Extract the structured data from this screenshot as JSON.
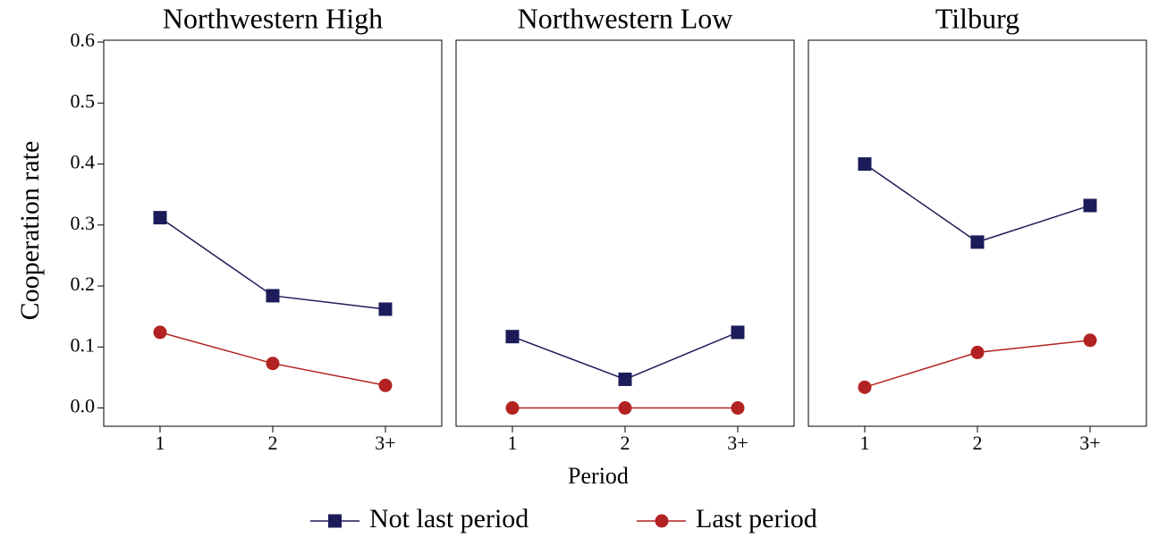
{
  "figure": {
    "ylabel": "Cooperation rate",
    "xlabel": "Period"
  },
  "chart_data": [
    {
      "type": "line",
      "title": "Northwestern High",
      "categories": [
        "1",
        "2",
        "3+"
      ],
      "series": [
        {
          "name": "Not last period",
          "color": "#1c1c5a",
          "marker": "square",
          "values": [
            0.312,
            0.184,
            0.162
          ]
        },
        {
          "name": "Last period",
          "color": "#b22222",
          "marker": "circle",
          "values": [
            0.124,
            0.073,
            0.037
          ]
        }
      ],
      "ylim": [
        -0.03,
        0.603
      ],
      "yticks": [
        {
          "value": 0,
          "label": "0.0"
        },
        0.1,
        0.2,
        0.3,
        0.4,
        0.5,
        0.6
      ]
    },
    {
      "type": "line",
      "title": "Northwestern Low",
      "categories": [
        "1",
        "2",
        "3+"
      ],
      "series": [
        {
          "name": "Not last period",
          "color": "#1c1c5a",
          "marker": "square",
          "values": [
            0.117,
            0.047,
            0.124
          ]
        },
        {
          "name": "Last period",
          "color": "#b22222",
          "marker": "circle",
          "values": [
            0,
            0,
            0
          ]
        }
      ],
      "ylim": [
        -0.03,
        0.603
      ]
    },
    {
      "type": "line",
      "title": "Tilburg",
      "categories": [
        "1",
        "2",
        "3+"
      ],
      "series": [
        {
          "name": "Not last period",
          "color": "#1c1c5a",
          "marker": "square",
          "values": [
            0.4,
            0.272,
            0.332
          ]
        },
        {
          "name": "Last period",
          "color": "#b22222",
          "marker": "circle",
          "values": [
            0.034,
            0.091,
            0.111
          ]
        }
      ],
      "ylim": [
        -0.03,
        0.603
      ]
    }
  ]
}
